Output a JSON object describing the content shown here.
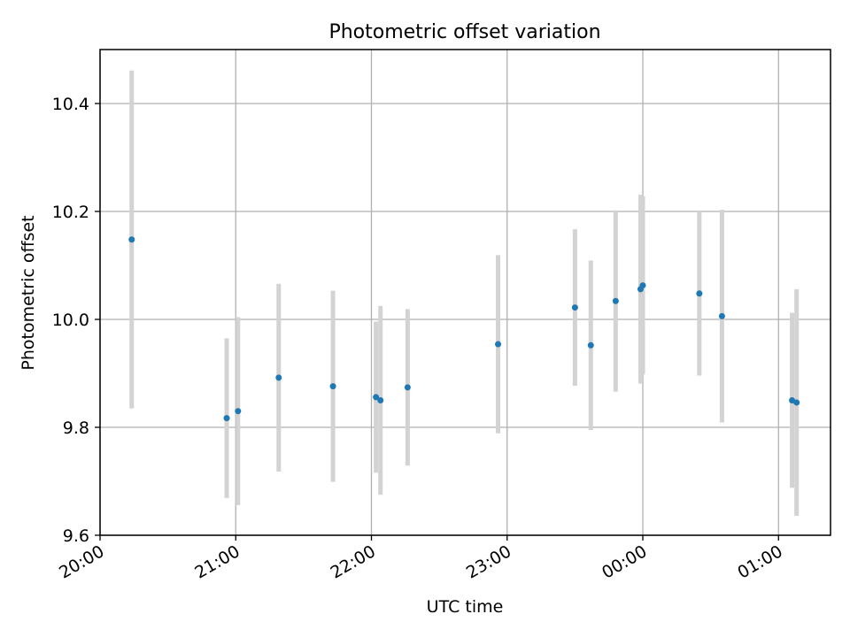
{
  "chart_data": {
    "type": "scatter",
    "title": "Photometric offset variation",
    "xlabel": "UTC time",
    "ylabel": "Photometric offset",
    "xlim": [
      "20:00",
      "01:23"
    ],
    "ylim": [
      9.6,
      10.5
    ],
    "x_ticks": [
      "20:00",
      "21:00",
      "22:00",
      "23:00",
      "00:00",
      "01:00"
    ],
    "y_ticks": [
      "9.6",
      "9.8",
      "10.0",
      "10.2",
      "10.4"
    ],
    "grid": true,
    "point_color": "#1f77b4",
    "errorbar_color": "#d3d3d3",
    "series": [
      {
        "points": [
          {
            "x": "20:14",
            "y": 10.148,
            "err": 0.313
          },
          {
            "x": "20:56",
            "y": 9.817,
            "err": 0.148
          },
          {
            "x": "21:01",
            "y": 9.83,
            "err": 0.174
          },
          {
            "x": "21:19",
            "y": 9.892,
            "err": 0.174
          },
          {
            "x": "21:43",
            "y": 9.876,
            "err": 0.177
          },
          {
            "x": "22:02",
            "y": 9.856,
            "err": 0.14
          },
          {
            "x": "22:04",
            "y": 9.85,
            "err": 0.175
          },
          {
            "x": "22:16",
            "y": 9.874,
            "err": 0.145
          },
          {
            "x": "22:56",
            "y": 9.954,
            "err": 0.165
          },
          {
            "x": "23:30",
            "y": 10.022,
            "err": 0.145
          },
          {
            "x": "23:37",
            "y": 9.952,
            "err": 0.157
          },
          {
            "x": "23:48",
            "y": 10.034,
            "err": 0.168
          },
          {
            "x": "23:59",
            "y": 10.056,
            "err": 0.175
          },
          {
            "x": "00:00",
            "y": 10.063,
            "err": 0.165
          },
          {
            "x": "00:25",
            "y": 10.048,
            "err": 0.152
          },
          {
            "x": "00:35",
            "y": 10.006,
            "err": 0.197
          },
          {
            "x": "01:06",
            "y": 9.85,
            "err": 0.162
          },
          {
            "x": "01:08",
            "y": 9.846,
            "err": 0.21
          }
        ]
      }
    ]
  }
}
